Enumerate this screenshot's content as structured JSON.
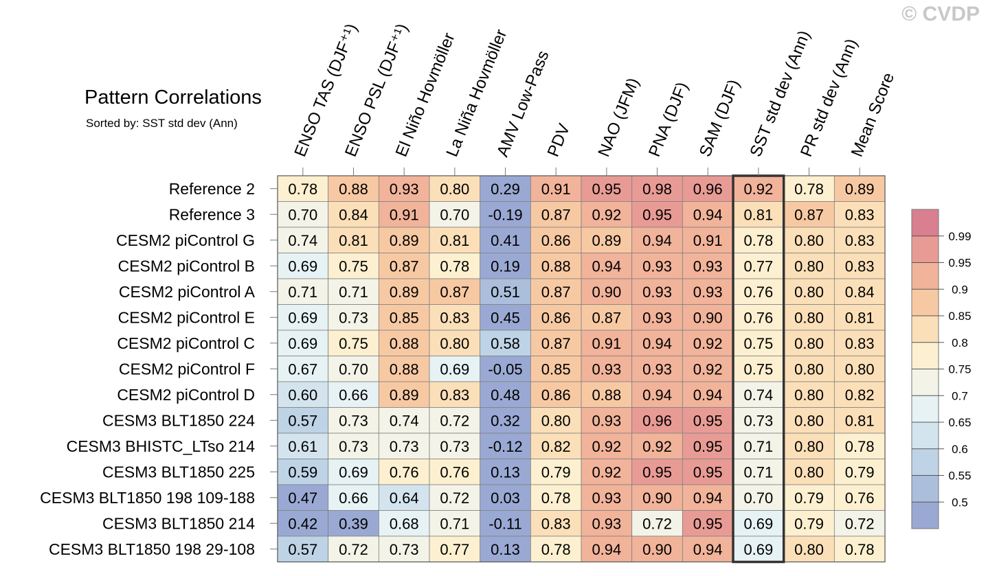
{
  "chart_data": {
    "type": "heatmap",
    "title": "Pattern Correlations",
    "subtitle": "Sorted by: SST std dev (Ann)",
    "copyright": "© CVDP",
    "columns": [
      "ENSO TAS (DJF⁺¹)",
      "ENSO PSL (DJF⁺¹)",
      "El Niño Hovmöller",
      "La Niña Hovmöller",
      "AMV Low-Pass",
      "PDV",
      "NAO (JFM)",
      "PNA (DJF)",
      "SAM (DJF)",
      "SST std dev (Ann)",
      "PR std dev (Ann)",
      "Mean Score"
    ],
    "highlight_column": "SST std dev (Ann)",
    "rows": [
      "Reference 2",
      "Reference 3",
      "CESM2 piControl G",
      "CESM2 piControl B",
      "CESM2 piControl A",
      "CESM2 piControl E",
      "CESM2 piControl C",
      "CESM2 piControl F",
      "CESM2 piControl D",
      "CESM3 BLT1850 224",
      "CESM3 BHISTC_LTso 214",
      "CESM3 BLT1850 225",
      "CESM3 BLT1850 198 109-188",
      "CESM3 BLT1850 214",
      "CESM3 BLT1850 198 29-108"
    ],
    "values": [
      [
        "0.78",
        "0.88",
        "0.93",
        "0.80",
        "0.29",
        "0.91",
        "0.95",
        "0.98",
        "0.96",
        "0.92",
        "0.78",
        "0.89"
      ],
      [
        "0.70",
        "0.84",
        "0.91",
        "0.70",
        "-0.19",
        "0.87",
        "0.92",
        "0.95",
        "0.94",
        "0.81",
        "0.87",
        "0.83"
      ],
      [
        "0.74",
        "0.81",
        "0.89",
        "0.81",
        "0.41",
        "0.86",
        "0.89",
        "0.94",
        "0.91",
        "0.78",
        "0.80",
        "0.83"
      ],
      [
        "0.69",
        "0.75",
        "0.87",
        "0.78",
        "0.19",
        "0.88",
        "0.94",
        "0.93",
        "0.93",
        "0.77",
        "0.80",
        "0.83"
      ],
      [
        "0.71",
        "0.71",
        "0.89",
        "0.87",
        "0.51",
        "0.87",
        "0.90",
        "0.93",
        "0.93",
        "0.76",
        "0.80",
        "0.84"
      ],
      [
        "0.69",
        "0.73",
        "0.85",
        "0.83",
        "0.45",
        "0.86",
        "0.87",
        "0.93",
        "0.90",
        "0.76",
        "0.80",
        "0.81"
      ],
      [
        "0.69",
        "0.75",
        "0.88",
        "0.80",
        "0.58",
        "0.87",
        "0.91",
        "0.94",
        "0.92",
        "0.75",
        "0.80",
        "0.83"
      ],
      [
        "0.67",
        "0.70",
        "0.88",
        "0.69",
        "-0.05",
        "0.85",
        "0.93",
        "0.93",
        "0.92",
        "0.75",
        "0.80",
        "0.80"
      ],
      [
        "0.60",
        "0.66",
        "0.89",
        "0.83",
        "0.48",
        "0.86",
        "0.88",
        "0.94",
        "0.94",
        "0.74",
        "0.80",
        "0.82"
      ],
      [
        "0.57",
        "0.73",
        "0.74",
        "0.72",
        "0.32",
        "0.80",
        "0.93",
        "0.96",
        "0.95",
        "0.73",
        "0.80",
        "0.81"
      ],
      [
        "0.61",
        "0.73",
        "0.73",
        "0.73",
        "-0.12",
        "0.82",
        "0.92",
        "0.92",
        "0.95",
        "0.71",
        "0.80",
        "0.78"
      ],
      [
        "0.59",
        "0.69",
        "0.76",
        "0.76",
        "0.13",
        "0.79",
        "0.92",
        "0.95",
        "0.95",
        "0.71",
        "0.80",
        "0.79"
      ],
      [
        "0.47",
        "0.66",
        "0.64",
        "0.72",
        "0.03",
        "0.78",
        "0.93",
        "0.90",
        "0.94",
        "0.70",
        "0.79",
        "0.76"
      ],
      [
        "0.42",
        "0.39",
        "0.68",
        "0.71",
        "-0.11",
        "0.83",
        "0.93",
        "0.72",
        "0.95",
        "0.69",
        "0.79",
        "0.72"
      ],
      [
        "0.57",
        "0.72",
        "0.73",
        "0.77",
        "0.13",
        "0.78",
        "0.94",
        "0.90",
        "0.94",
        "0.69",
        "0.80",
        "0.78"
      ]
    ],
    "colorbar": {
      "levels": [
        0.5,
        0.55,
        0.6,
        0.65,
        0.7,
        0.75,
        0.8,
        0.85,
        0.9,
        0.95,
        0.99
      ],
      "labels": [
        "0.5",
        "0.55",
        "0.6",
        "0.65",
        "0.7",
        "0.75",
        "0.8",
        "0.85",
        "0.9",
        "0.95",
        "0.99"
      ],
      "colors": [
        "#9aa9d3",
        "#abbedc",
        "#bed3e6",
        "#d3e4ee",
        "#e6f2f4",
        "#f3f3e8",
        "#fcf0d0",
        "#fbdfb8",
        "#f7c9a3",
        "#f1b39a",
        "#e89b95",
        "#d97f8f"
      ]
    },
    "grid_color": "#808080",
    "highlight_color": "#333333"
  }
}
